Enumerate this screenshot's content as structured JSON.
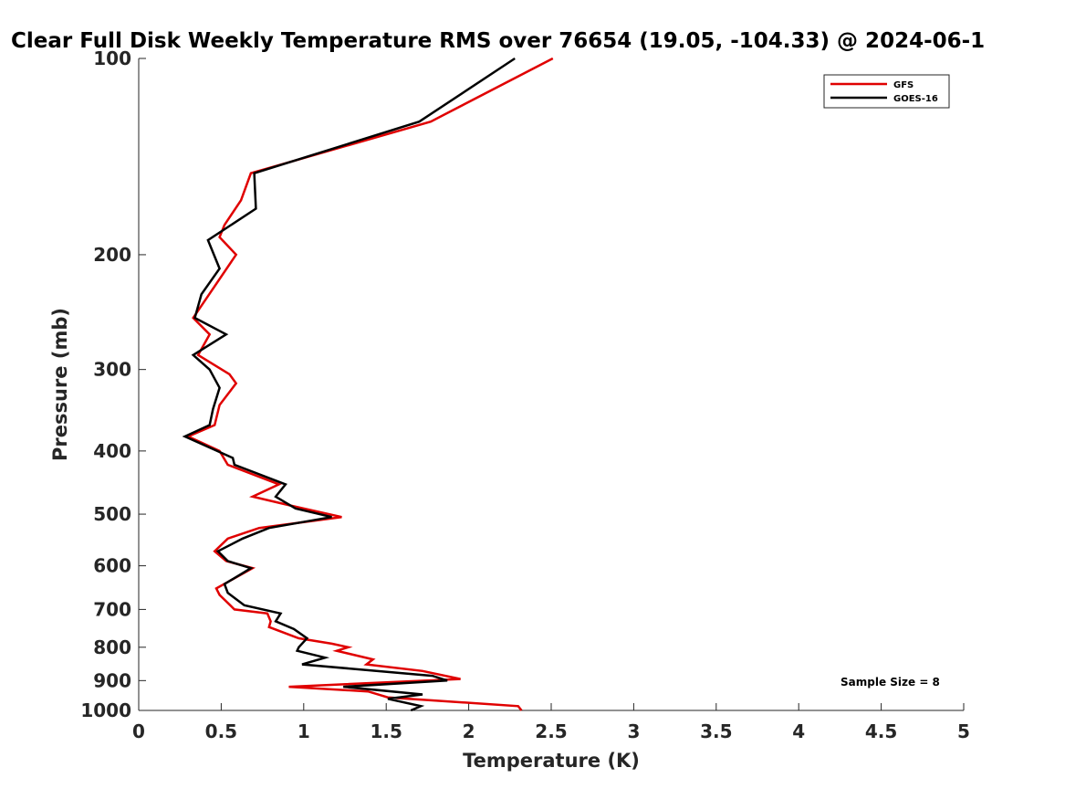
{
  "chart_data": {
    "type": "line",
    "title": "Clear Full Disk Weekly Temperature RMS over 76654 (19.05, -104.33) @ 2024-06-1",
    "xlabel": "Temperature (K)",
    "ylabel": "Pressure (mb)",
    "xlim": [
      0,
      5
    ],
    "ylim": [
      1000,
      100
    ],
    "yscale": "log",
    "xticks": [
      "0",
      "0.5",
      "1",
      "1.5",
      "2",
      "2.5",
      "3",
      "3.5",
      "4",
      "4.5",
      "5"
    ],
    "yticks": [
      "100",
      "200",
      "300",
      "400",
      "500",
      "600",
      "700",
      "800",
      "900",
      "1000"
    ],
    "grid": false,
    "legend_position": "top-right",
    "annotation": "Sample Size = 8",
    "series": [
      {
        "name": "GFS",
        "color": "#e00000",
        "points": [
          [
            2.51,
            100
          ],
          [
            1.77,
            125
          ],
          [
            0.68,
            150
          ],
          [
            0.62,
            165
          ],
          [
            0.52,
            180
          ],
          [
            0.49,
            188
          ],
          [
            0.59,
            200
          ],
          [
            0.33,
            250
          ],
          [
            0.43,
            265
          ],
          [
            0.36,
            285
          ],
          [
            0.55,
            305
          ],
          [
            0.59,
            315
          ],
          [
            0.49,
            340
          ],
          [
            0.46,
            365
          ],
          [
            0.3,
            380
          ],
          [
            0.49,
            400
          ],
          [
            0.54,
            420
          ],
          [
            0.85,
            450
          ],
          [
            0.69,
            470
          ],
          [
            0.92,
            485
          ],
          [
            1.23,
            505
          ],
          [
            0.73,
            525
          ],
          [
            0.54,
            545
          ],
          [
            0.46,
            570
          ],
          [
            0.53,
            590
          ],
          [
            0.69,
            605
          ],
          [
            0.47,
            650
          ],
          [
            0.49,
            665
          ],
          [
            0.58,
            700
          ],
          [
            0.78,
            710
          ],
          [
            0.8,
            730
          ],
          [
            0.79,
            745
          ],
          [
            0.97,
            775
          ],
          [
            1.17,
            790
          ],
          [
            1.27,
            800
          ],
          [
            1.2,
            810
          ],
          [
            1.42,
            835
          ],
          [
            1.38,
            850
          ],
          [
            1.72,
            870
          ],
          [
            1.95,
            895
          ],
          [
            0.91,
            920
          ],
          [
            1.39,
            935
          ],
          [
            1.51,
            955
          ],
          [
            2.3,
            985
          ],
          [
            2.32,
            1000
          ]
        ]
      },
      {
        "name": "GOES-16",
        "color": "#000000",
        "points": [
          [
            2.28,
            100
          ],
          [
            1.7,
            125
          ],
          [
            0.7,
            150
          ],
          [
            0.71,
            170
          ],
          [
            0.42,
            190
          ],
          [
            0.49,
            210
          ],
          [
            0.38,
            230
          ],
          [
            0.34,
            250
          ],
          [
            0.53,
            265
          ],
          [
            0.33,
            285
          ],
          [
            0.43,
            300
          ],
          [
            0.49,
            320
          ],
          [
            0.45,
            345
          ],
          [
            0.43,
            365
          ],
          [
            0.28,
            380
          ],
          [
            0.57,
            410
          ],
          [
            0.58,
            420
          ],
          [
            0.89,
            450
          ],
          [
            0.83,
            470
          ],
          [
            0.95,
            490
          ],
          [
            1.17,
            505
          ],
          [
            0.79,
            525
          ],
          [
            0.63,
            545
          ],
          [
            0.48,
            570
          ],
          [
            0.54,
            590
          ],
          [
            0.68,
            605
          ],
          [
            0.52,
            640
          ],
          [
            0.54,
            660
          ],
          [
            0.64,
            690
          ],
          [
            0.86,
            710
          ],
          [
            0.83,
            730
          ],
          [
            0.94,
            750
          ],
          [
            1.02,
            775
          ],
          [
            0.97,
            800
          ],
          [
            0.96,
            810
          ],
          [
            1.13,
            830
          ],
          [
            0.99,
            850
          ],
          [
            1.78,
            885
          ],
          [
            1.87,
            900
          ],
          [
            1.24,
            920
          ],
          [
            1.72,
            945
          ],
          [
            1.51,
            960
          ],
          [
            1.71,
            985
          ],
          [
            1.65,
            1000
          ]
        ]
      }
    ]
  }
}
